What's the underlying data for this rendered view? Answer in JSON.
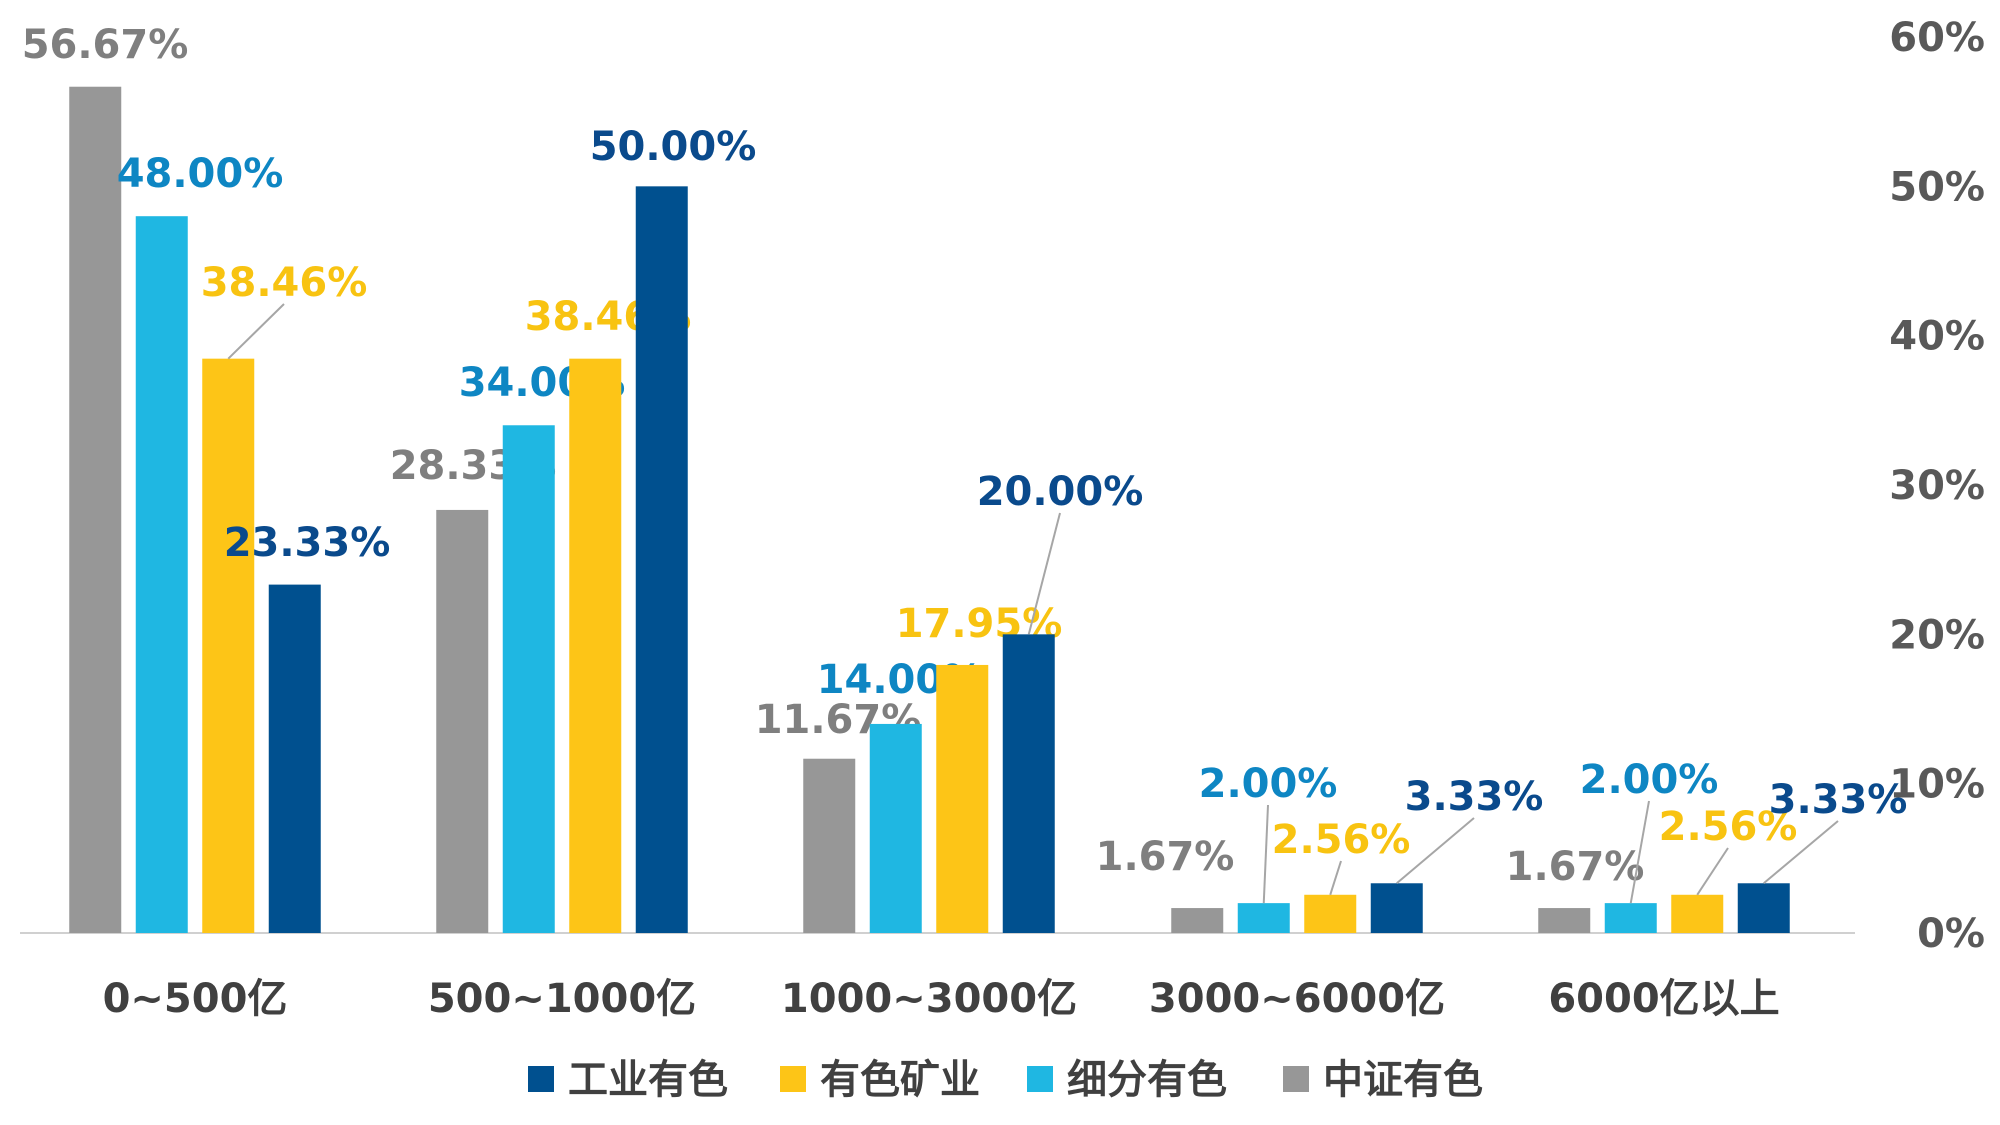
{
  "chart_data": {
    "type": "bar",
    "categories": [
      "0~500亿",
      "500~1000亿",
      "1000~3000亿",
      "3000~6000亿",
      "6000亿以上"
    ],
    "series": [
      {
        "name": "中证有色",
        "values": [
          56.67,
          28.33,
          11.67,
          1.67,
          1.67
        ],
        "labels": [
          "56.67%",
          "28.33%",
          "11.67%",
          "1.67%",
          "1.67%"
        ],
        "color": "#979797"
      },
      {
        "name": "细分有色",
        "values": [
          48.0,
          34.0,
          14.0,
          2.0,
          2.0
        ],
        "labels": [
          "48.00%",
          "34.00%",
          "14.00%",
          "2.00%",
          "2.00%"
        ],
        "color": "#1FB7E2"
      },
      {
        "name": "有色矿业",
        "values": [
          38.46,
          38.46,
          17.95,
          2.56,
          2.56
        ],
        "labels": [
          "38.46%",
          "38.46%",
          "17.95%",
          "2.56%",
          "2.56%"
        ],
        "color": "#FDC517"
      },
      {
        "name": "工业有色",
        "values": [
          23.33,
          50.0,
          20.0,
          3.33,
          3.33
        ],
        "labels": [
          "23.33%",
          "50.00%",
          "20.00%",
          "3.33%",
          "3.33%"
        ],
        "color": "#00508F"
      }
    ],
    "label_colors": {
      "中证有色": "#7F7F7F",
      "细分有色": "#0E86C3",
      "有色矿业": "#F8C311",
      "工业有色": "#0A4A8C"
    },
    "y_axis": {
      "position": "right",
      "ticks": [
        "0%",
        "10%",
        "20%",
        "30%",
        "40%",
        "50%",
        "60%"
      ],
      "ylim": [
        0,
        60
      ]
    },
    "legend": {
      "position": "bottom",
      "order": [
        "工业有色",
        "有色矿业",
        "细分有色",
        "中证有色"
      ]
    },
    "grid": false
  }
}
